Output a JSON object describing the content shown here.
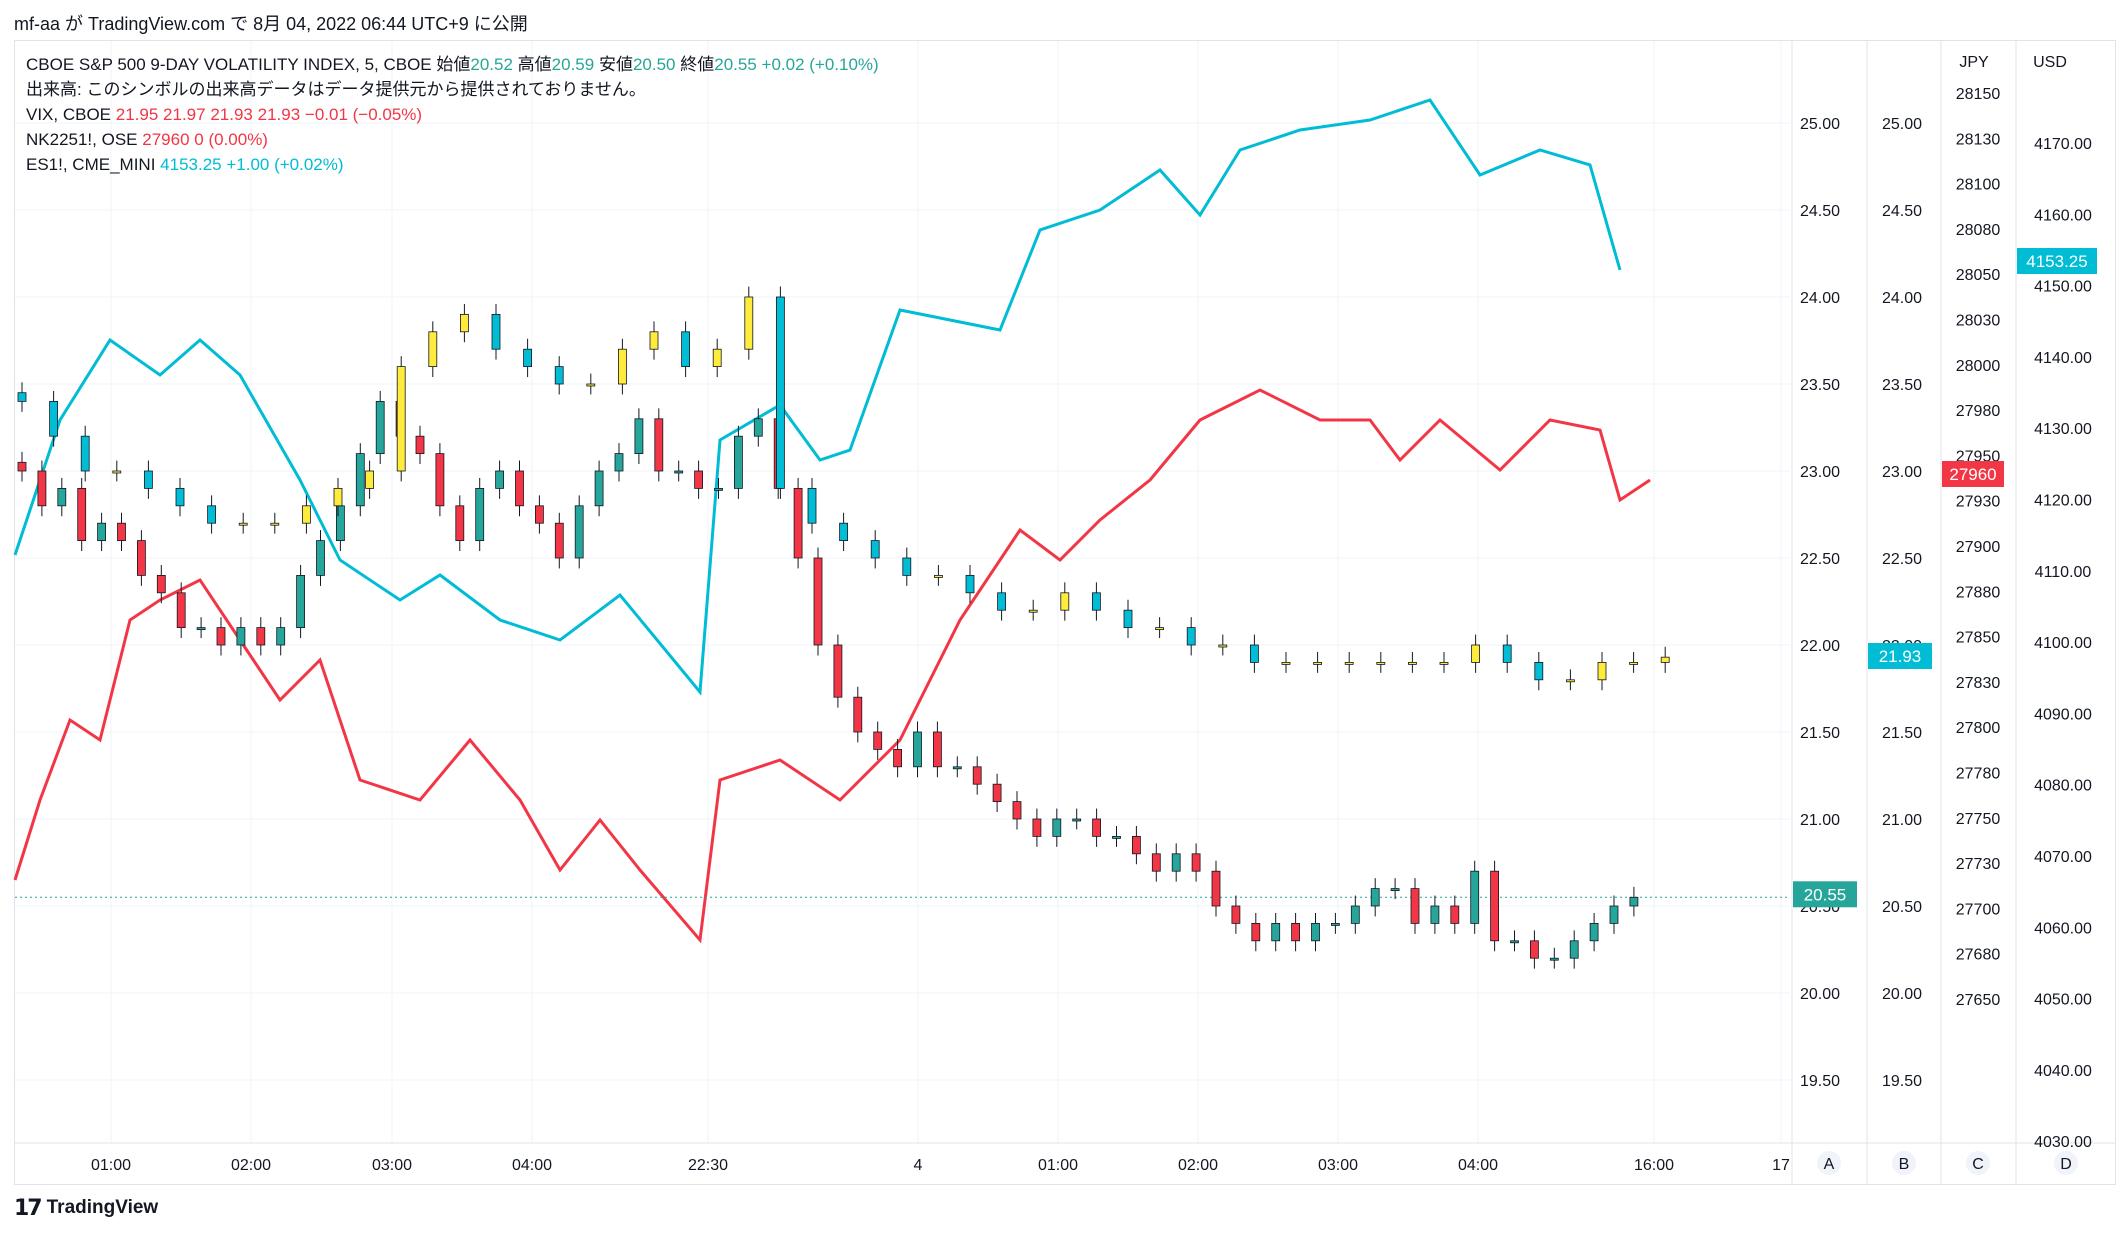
{
  "header": {
    "publisher": "mf-aa が TradingView.com で 8月 04, 2022 06:44 UTC+9 に公開"
  },
  "legend": {
    "main": {
      "title": "CBOE S&P 500 9-DAY VOLATILITY INDEX, 5, CBOE",
      "open_label": "始値",
      "open": "20.52",
      "high_label": "高値",
      "high": "20.59",
      "low_label": "安値",
      "low": "20.50",
      "close_label": "終値",
      "close": "20.55",
      "change": "+0.02 (+0.10%)"
    },
    "volume_note": "出来高: このシンボルの出来高データはデータ提供元から提供されておりません。",
    "vix": {
      "name": "VIX, CBOE",
      "o": "21.95",
      "h": "21.97",
      "l": "21.93",
      "c": "21.93",
      "chg": "−0.01 (−0.05%)"
    },
    "nk": {
      "name": "NK2251!, OSE",
      "price": "27960",
      "chg": "0 (0.00%)"
    },
    "es": {
      "name": "ES1!, CME_MINI",
      "price": "4153.25",
      "chg": "+1.00 (+0.02%)"
    }
  },
  "axes": {
    "headers": [
      "JPY",
      "USD"
    ],
    "scale_letters": [
      "A",
      "B",
      "C",
      "D"
    ],
    "price_ticks": [
      "25.00",
      "24.50",
      "24.00",
      "23.50",
      "23.00",
      "22.50",
      "22.00",
      "21.50",
      "21.00",
      "20.50",
      "20.00",
      "19.50"
    ],
    "price_tag_main": "20.55",
    "price_tag_vix": "21.93",
    "jpy_ticks": [
      "28150",
      "28130",
      "28100",
      "28080",
      "28050",
      "28030",
      "28000",
      "27980",
      "27950",
      "27930",
      "27900",
      "27880",
      "27850",
      "27830",
      "27800",
      "27780",
      "27750",
      "27730",
      "27700",
      "27680",
      "27650"
    ],
    "jpy_tag": "27960",
    "usd_ticks": [
      "4170.00",
      "4160.00",
      "4150.00",
      "4140.00",
      "4130.00",
      "4120.00",
      "4110.00",
      "4100.00",
      "4090.00",
      "4080.00",
      "4070.00",
      "4060.00",
      "4050.00",
      "4040.00",
      "4030.00"
    ],
    "usd_tag": "4153.25",
    "time_ticks": [
      "01:00",
      "02:00",
      "03:00",
      "04:00",
      "22:30",
      "4",
      "01:00",
      "02:00",
      "03:00",
      "04:00",
      "16:00",
      "17"
    ]
  },
  "colors": {
    "up": "#26a69a",
    "down": "#f23645",
    "vix_up": "#ffeb3b",
    "vix_down": "#00bcd4",
    "nk": "#f23645",
    "es": "#00bcd4",
    "grid": "#f0f3fa"
  },
  "chart_data": {
    "type": "candlestick",
    "main_symbol": "CBOE S&P 500 9-DAY VOLATILITY INDEX (VIX9D), 5m",
    "ylim": [
      19.3,
      25.2
    ],
    "main_closes": [
      23.0,
      22.8,
      22.9,
      22.6,
      22.7,
      22.6,
      22.4,
      22.3,
      22.1,
      22.1,
      22.0,
      22.1,
      22.0,
      22.1,
      22.4,
      22.6,
      22.8,
      23.1,
      23.4,
      23.2,
      23.1,
      22.8,
      22.6,
      22.9,
      23.0,
      22.8,
      22.7,
      22.5,
      22.8,
      23.0,
      23.1,
      23.3,
      23.0,
      23.0,
      22.9,
      22.9,
      23.2,
      23.3,
      22.9,
      22.5,
      22.0,
      21.7,
      21.5,
      21.4,
      21.3,
      21.5,
      21.3,
      21.3,
      21.2,
      21.1,
      21.0,
      20.9,
      21.0,
      21.0,
      20.9,
      20.9,
      20.8,
      20.7,
      20.8,
      20.7,
      20.5,
      20.4,
      20.3,
      20.4,
      20.3,
      20.4,
      20.4,
      20.5,
      20.6,
      20.6,
      20.4,
      20.5,
      20.4,
      20.7,
      20.3,
      20.3,
      20.2,
      20.2,
      20.3,
      20.4,
      20.5,
      20.55
    ],
    "vix_closes": [
      23.4,
      23.2,
      23.0,
      23.0,
      22.9,
      22.8,
      22.7,
      22.7,
      22.7,
      22.8,
      22.9,
      23.0,
      23.6,
      23.8,
      23.9,
      23.7,
      23.6,
      23.5,
      23.5,
      23.7,
      23.8,
      23.6,
      23.7,
      24.0,
      22.9,
      22.7,
      22.6,
      22.5,
      22.4,
      22.4,
      22.3,
      22.2,
      22.2,
      22.3,
      22.2,
      22.1,
      22.1,
      22.0,
      22.0,
      21.9,
      21.9,
      21.9,
      21.9,
      21.9,
      21.9,
      21.9,
      22.0,
      21.9,
      21.8,
      21.8,
      21.9,
      21.9,
      21.93
    ],
    "nk_close": 27960,
    "es_close": 4153.25
  }
}
